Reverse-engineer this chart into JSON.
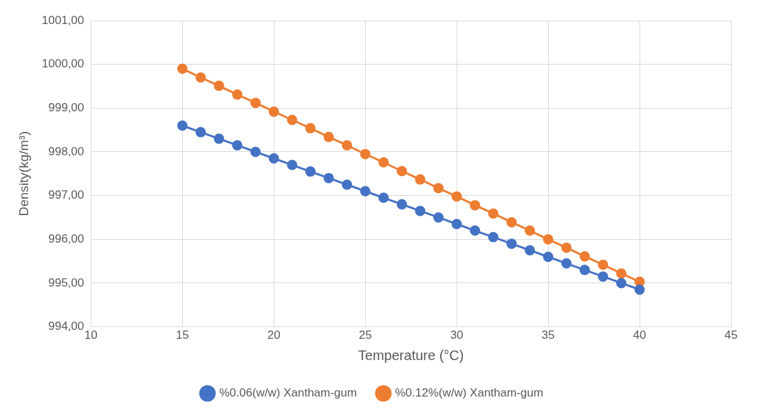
{
  "chart_data": {
    "type": "line",
    "xlabel": "Temperature (°C)",
    "ylabel": "Density(kg/m³)",
    "x": [
      15,
      16,
      17,
      18,
      19,
      20,
      21,
      22,
      23,
      24,
      25,
      26,
      27,
      28,
      29,
      30,
      31,
      32,
      33,
      34,
      35,
      36,
      37,
      38,
      39,
      40
    ],
    "series": [
      {
        "name": "%0.06(w/w) Xantham-gum",
        "color": "#4472c4",
        "values": [
          998.6,
          998.45,
          998.3,
          998.15,
          998.0,
          997.85,
          997.7,
          997.55,
          997.4,
          997.25,
          997.1,
          996.95,
          996.8,
          996.65,
          996.5,
          996.35,
          996.2,
          996.05,
          995.9,
          995.75,
          995.6,
          995.45,
          995.3,
          995.15,
          995.0,
          994.85
        ]
      },
      {
        "name": "%0.12%(w/w) Xantham-gum",
        "color": "#ed7d31",
        "values": [
          999.9,
          999.7,
          999.51,
          999.31,
          999.12,
          998.92,
          998.73,
          998.54,
          998.34,
          998.15,
          997.95,
          997.76,
          997.56,
          997.37,
          997.17,
          996.98,
          996.78,
          996.59,
          996.39,
          996.2,
          996.0,
          995.81,
          995.61,
          995.42,
          995.22,
          995.03
        ]
      }
    ],
    "xlim": [
      10,
      45
    ],
    "xticks": [
      10,
      15,
      20,
      25,
      30,
      35,
      40,
      45
    ],
    "ylim": [
      994,
      1001
    ],
    "yticks": [
      {
        "value": 994,
        "label": "994,00"
      },
      {
        "value": 995,
        "label": "995,00"
      },
      {
        "value": 996,
        "label": "996,00"
      },
      {
        "value": 997,
        "label": "997,00"
      },
      {
        "value": 998,
        "label": "998,00"
      },
      {
        "value": 999,
        "label": "999,00"
      },
      {
        "value": 1000,
        "label": "1000,00"
      },
      {
        "value": 1001,
        "label": "1001,00"
      }
    ],
    "grid": true,
    "legend": "bottom",
    "marker": "circle",
    "line_style": "solid"
  }
}
